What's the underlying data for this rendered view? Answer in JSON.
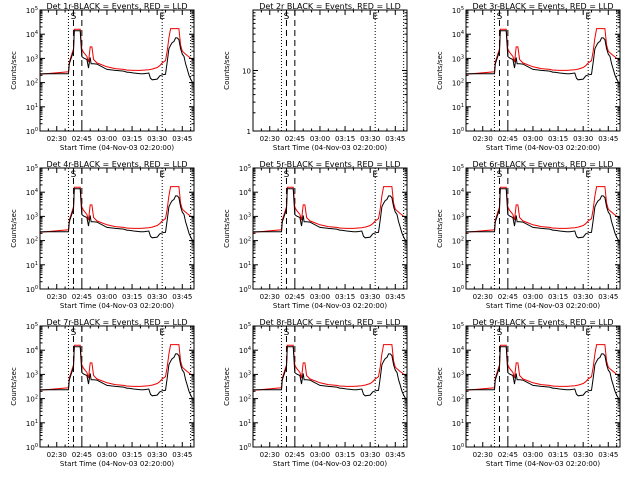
{
  "chart_data": {
    "type": "line",
    "panels": [
      {
        "title": "Det 1r-BLACK = Events, RED = LLD",
        "xlabel": "Start Time (04-Nov-03 02:20:00)",
        "ylabel": "Counts/sec",
        "yscale": "log",
        "ylim": [
          1,
          100000
        ],
        "yticks": [
          "10^0",
          "10^1",
          "10^2",
          "10^3",
          "10^4",
          "10^5"
        ],
        "has_data": true
      },
      {
        "title": "Det 2r BLACK = Events, RED = LLD",
        "xlabel": "Start Time (04-Nov-03 02:20:00)",
        "ylabel": "Counts/sec",
        "yscale": "log",
        "ylim": [
          1,
          100
        ],
        "yticks": [
          "1",
          "10"
        ],
        "has_data": false
      },
      {
        "title": "Det 3r-BLACK = Events, RED = LLD",
        "xlabel": "Start Time (04-Nov-03 02:20:00)",
        "ylabel": "Counts/sec",
        "yscale": "log",
        "ylim": [
          1,
          100000
        ],
        "yticks": [
          "10^0",
          "10^1",
          "10^2",
          "10^3",
          "10^4",
          "10^5"
        ],
        "has_data": true
      },
      {
        "title": "Det 4r-BLACK = Events, RED = LLD",
        "xlabel": "Start Time (04-Nov-03 02:20:00)",
        "ylabel": "Counts/sec",
        "yscale": "log",
        "ylim": [
          1,
          100000
        ],
        "yticks": [
          "10^0",
          "10^1",
          "10^2",
          "10^3",
          "10^4",
          "10^5"
        ],
        "has_data": true
      },
      {
        "title": "Det 5r-BLACK = Events, RED = LLD",
        "xlabel": "Start Time (04-Nov-03 02:20:00)",
        "ylabel": "Counts/sec",
        "yscale": "log",
        "ylim": [
          1,
          100000
        ],
        "yticks": [
          "10^0",
          "10^1",
          "10^2",
          "10^3",
          "10^4",
          "10^5"
        ],
        "has_data": true
      },
      {
        "title": "Det 6r-BLACK = Events, RED = LLD",
        "xlabel": "Start Time (04-Nov-03 02:20:00)",
        "ylabel": "Counts/sec",
        "yscale": "log",
        "ylim": [
          1,
          100000
        ],
        "yticks": [
          "10^0",
          "10^1",
          "10^2",
          "10^3",
          "10^4",
          "10^5"
        ],
        "has_data": true
      },
      {
        "title": "Det 7r-BLACK = Events, RED = LLD",
        "xlabel": "Start Time (04-Nov-03 02:20:00)",
        "ylabel": "Counts/sec",
        "yscale": "log",
        "ylim": [
          1,
          100000
        ],
        "yticks": [
          "10^0",
          "10^1",
          "10^2",
          "10^3",
          "10^4",
          "10^5"
        ],
        "has_data": true
      },
      {
        "title": "Det 8r-BLACK = Events, RED = LLD",
        "xlabel": "Start Time (04-Nov-03 02:20:00)",
        "ylabel": "Counts/sec",
        "yscale": "log",
        "ylim": [
          1,
          100000
        ],
        "yticks": [
          "10^0",
          "10^1",
          "10^2",
          "10^3",
          "10^4",
          "10^5"
        ],
        "has_data": true
      },
      {
        "title": "Det 9r-BLACK = Events, RED = LLD",
        "xlabel": "Start Time (04-Nov-03 02:20:00)",
        "ylabel": "Counts/sec",
        "yscale": "log",
        "ylim": [
          1,
          100000
        ],
        "yticks": [
          "10^0",
          "10^1",
          "10^2",
          "10^3",
          "10^4",
          "10^5"
        ],
        "has_data": true
      }
    ],
    "x_unit": "minutes after 02:20:00",
    "xlim": [
      0,
      92
    ],
    "xticks": [
      {
        "t": 10,
        "label": "02:30"
      },
      {
        "t": 25,
        "label": "02:45"
      },
      {
        "t": 40,
        "label": "03:00"
      },
      {
        "t": 55,
        "label": "03:15"
      },
      {
        "t": 70,
        "label": "03:30"
      },
      {
        "t": 85,
        "label": "03:45"
      }
    ],
    "markers": [
      {
        "t": 17,
        "style": "dotted",
        "label": ""
      },
      {
        "t": 20,
        "style": "dashed",
        "label": "S"
      },
      {
        "t": 25,
        "style": "dashed",
        "label": ""
      },
      {
        "t": 73,
        "style": "dotted",
        "label": "E"
      },
      {
        "t": 90,
        "style": "dotted",
        "label": ""
      }
    ],
    "series": [
      {
        "name": "Events",
        "color": "#000000",
        "t": [
          0,
          17,
          17.5,
          20,
          20.5,
          24,
          25,
          26,
          28,
          29,
          29.5,
          30,
          30.5,
          31,
          32,
          34,
          40,
          45,
          50,
          52,
          53,
          56,
          58,
          60,
          62,
          65,
          66,
          67,
          70,
          71.5,
          73,
          75,
          76,
          77,
          78,
          79,
          80,
          81,
          82,
          83,
          84,
          85,
          86,
          87,
          88,
          89,
          90,
          91,
          92
        ],
        "values": [
          230,
          230,
          600,
          2000,
          14000,
          14000,
          1200,
          1050,
          900,
          400,
          700,
          1100,
          600,
          600,
          600,
          580,
          350,
          320,
          300,
          270,
          270,
          250,
          240,
          230,
          230,
          250,
          150,
          130,
          140,
          190,
          210,
          220,
          700,
          2500,
          3500,
          4500,
          5000,
          7000,
          7000,
          6000,
          2500,
          1500,
          1200,
          600,
          350,
          200,
          140,
          105,
          100
        ]
      },
      {
        "name": "LLD",
        "color": "#ee0000",
        "t": [
          0,
          17,
          17.5,
          20,
          20.5,
          24,
          25,
          26,
          28,
          29,
          30,
          31,
          32,
          34,
          40,
          45,
          50,
          52,
          53,
          56,
          58,
          60,
          62,
          65,
          66,
          67,
          70,
          71.5,
          73,
          75,
          76,
          77,
          78,
          79,
          80,
          81,
          82,
          83,
          84,
          85,
          86,
          87,
          88,
          89,
          90,
          91,
          92
        ],
        "values": [
          220,
          280,
          700,
          2500,
          16000,
          16000,
          2500,
          1800,
          1200,
          700,
          3000,
          3000,
          900,
          650,
          450,
          380,
          350,
          330,
          330,
          320,
          320,
          320,
          330,
          340,
          350,
          360,
          420,
          500,
          650,
          800,
          2000,
          7000,
          17000,
          17000,
          17000,
          17000,
          17000,
          17000,
          3500,
          2000,
          1700,
          1500,
          1300,
          1150,
          1000,
          950,
          900
        ]
      }
    ]
  }
}
